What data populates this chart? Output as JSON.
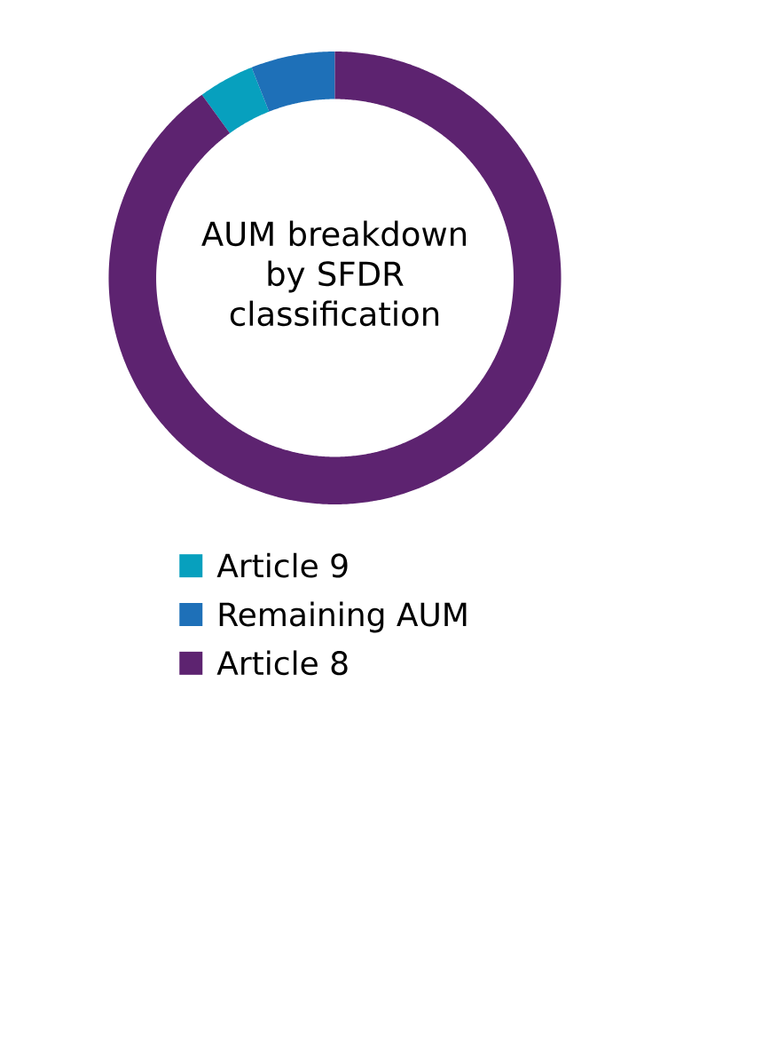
{
  "chart_data": {
    "type": "donut",
    "title": "AUM breakdown by SFDR classification",
    "categories": [
      "Article 9",
      "Remaining AUM",
      "Article 8"
    ],
    "values": [
      4,
      6,
      90
    ],
    "colors": [
      "#07a0be",
      "#1e70b8",
      "#5d2370"
    ],
    "legend": "bottom"
  }
}
